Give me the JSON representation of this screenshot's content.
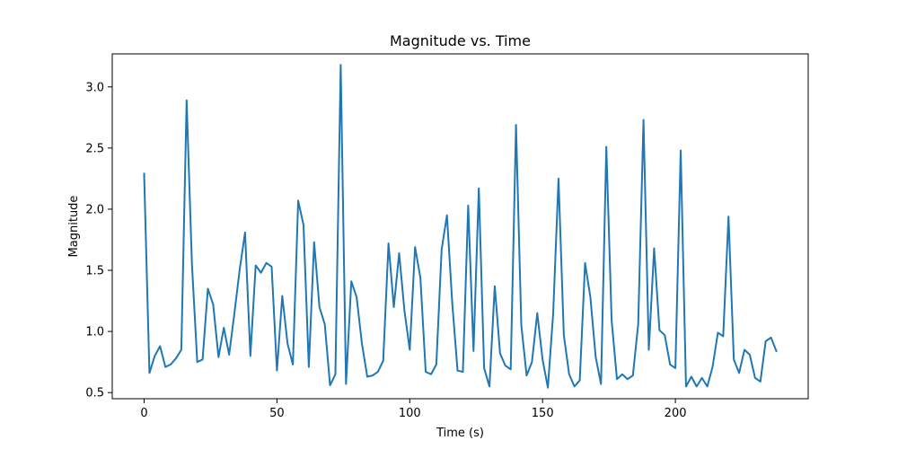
{
  "chart_data": {
    "type": "line",
    "title": "Magnitude vs. Time",
    "xlabel": "Time (s)",
    "ylabel": "Magnitude",
    "xlim": [
      -12,
      250
    ],
    "ylim": [
      0.45,
      3.27
    ],
    "xticks": [
      0,
      50,
      100,
      150,
      200
    ],
    "yticks": [
      0.5,
      1.0,
      1.5,
      2.0,
      2.5,
      3.0
    ],
    "xtick_labels": [
      "0",
      "50",
      "100",
      "150",
      "200"
    ],
    "ytick_labels": [
      "0.5",
      "1.0",
      "1.5",
      "2.0",
      "2.5",
      "3.0"
    ],
    "grid": false,
    "line_color": "#1f77b4",
    "series": [
      {
        "x": [
          0,
          2,
          4,
          6,
          8,
          10,
          12,
          14,
          16,
          18,
          20,
          22,
          24,
          26,
          28,
          30,
          32,
          34,
          36,
          38,
          40,
          42,
          44,
          46,
          48,
          50,
          52,
          54,
          56,
          58,
          60,
          62,
          64,
          66,
          68,
          70,
          72,
          74,
          76,
          78,
          80,
          82,
          84,
          86,
          88,
          90,
          92,
          94,
          96,
          98,
          100,
          102,
          104,
          106,
          108,
          110,
          112,
          114,
          116,
          118,
          120,
          122,
          124,
          126,
          128,
          130,
          132,
          134,
          136,
          138,
          140,
          142,
          144,
          146,
          148,
          150,
          152,
          154,
          156,
          158,
          160,
          162,
          164,
          166,
          168,
          170,
          172,
          174,
          176,
          178,
          180,
          182,
          184,
          186,
          188,
          190,
          192,
          194,
          196,
          198,
          200,
          202,
          204,
          206,
          208,
          210,
          212,
          214,
          216,
          218,
          220,
          222,
          224,
          226,
          228,
          230,
          232,
          234,
          236,
          238
        ],
        "values": [
          2.29,
          0.66,
          0.8,
          0.88,
          0.71,
          0.73,
          0.78,
          0.85,
          2.89,
          1.55,
          0.75,
          0.77,
          1.35,
          1.22,
          0.79,
          1.03,
          0.81,
          1.15,
          1.51,
          1.81,
          0.8,
          1.54,
          1.48,
          1.56,
          1.53,
          0.68,
          1.29,
          0.9,
          0.73,
          2.07,
          1.87,
          0.71,
          1.73,
          1.2,
          1.06,
          0.56,
          0.65,
          3.18,
          0.57,
          1.41,
          1.28,
          0.9,
          0.63,
          0.64,
          0.67,
          0.76,
          1.72,
          1.2,
          1.64,
          1.17,
          0.85,
          1.69,
          1.44,
          0.67,
          0.65,
          0.73,
          1.67,
          1.95,
          1.23,
          0.68,
          0.67,
          2.03,
          0.84,
          2.17,
          0.7,
          0.55,
          1.37,
          0.82,
          0.72,
          0.69,
          2.69,
          1.05,
          0.64,
          0.75,
          1.15,
          0.77,
          0.54,
          1.15,
          2.25,
          0.97,
          0.65,
          0.55,
          0.6,
          1.56,
          1.28,
          0.79,
          0.57,
          2.51,
          1.09,
          0.61,
          0.65,
          0.61,
          0.64,
          1.06,
          2.73,
          0.85,
          1.68,
          1.01,
          0.97,
          0.73,
          0.7,
          2.48,
          0.55,
          0.63,
          0.55,
          0.62,
          0.55,
          0.71,
          0.99,
          0.96,
          1.94,
          0.77,
          0.66,
          0.85,
          0.81,
          0.62,
          0.59,
          0.92,
          0.95,
          0.84
        ]
      }
    ]
  }
}
